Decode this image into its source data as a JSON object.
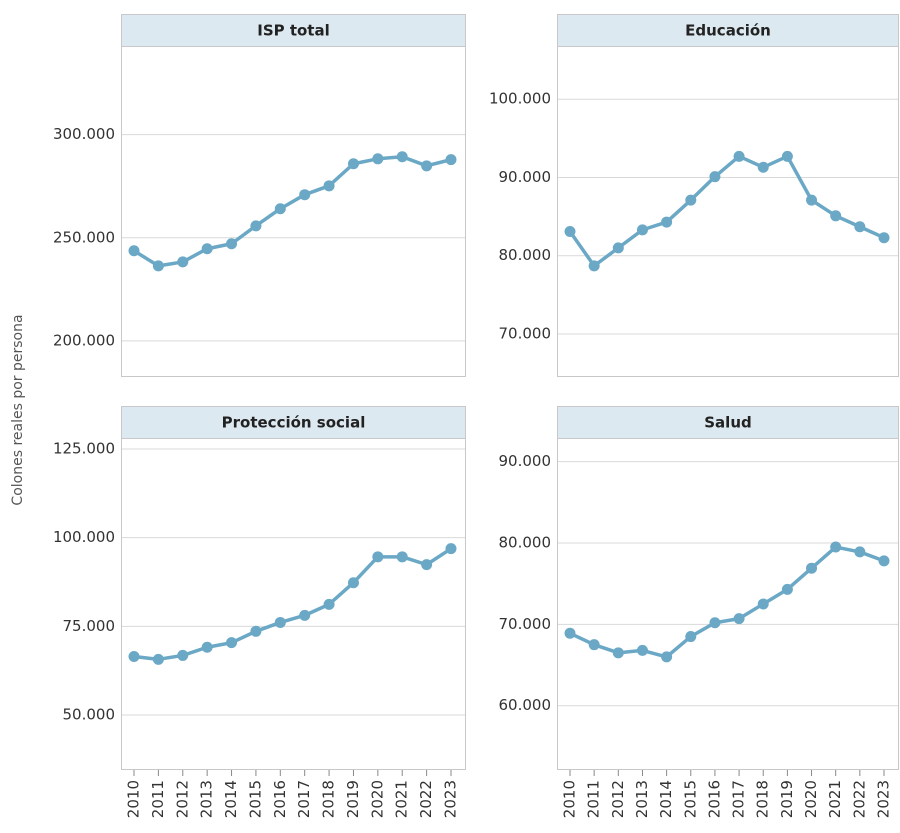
{
  "ylabel": "Colones reales por persona",
  "chart_data": [
    {
      "type": "line",
      "title": "ISP total",
      "color": "#6aa8c6",
      "grid": true,
      "categories": [
        "2010",
        "2011",
        "2012",
        "2013",
        "2014",
        "2015",
        "2016",
        "2017",
        "2018",
        "2019",
        "2020",
        "2021",
        "2022",
        "2023"
      ],
      "values": [
        243700,
        236400,
        238300,
        244700,
        247100,
        255800,
        264100,
        270900,
        275200,
        285900,
        288300,
        289300,
        284900,
        287900
      ],
      "ylim": [
        182500,
        343000
      ],
      "yticks": [
        {
          "value": 200000,
          "label": "200.000"
        },
        {
          "value": 250000,
          "label": "250.000"
        },
        {
          "value": 300000,
          "label": "300.000"
        }
      ]
    },
    {
      "type": "line",
      "title": "Educación",
      "color": "#6aa8c6",
      "grid": true,
      "categories": [
        "2010",
        "2011",
        "2012",
        "2013",
        "2014",
        "2015",
        "2016",
        "2017",
        "2018",
        "2019",
        "2020",
        "2021",
        "2022",
        "2023"
      ],
      "values": [
        83100,
        78700,
        81000,
        83300,
        84300,
        87100,
        90100,
        92700,
        91300,
        92700,
        87100,
        85100,
        83700,
        82300
      ],
      "ylim": [
        64500,
        106800
      ],
      "yticks": [
        {
          "value": 70000,
          "label": "70.000"
        },
        {
          "value": 80000,
          "label": "80.000"
        },
        {
          "value": 90000,
          "label": "90.000"
        },
        {
          "value": 100000,
          "label": "100.000"
        }
      ]
    },
    {
      "type": "line",
      "title": "Protección social",
      "color": "#6aa8c6",
      "grid": true,
      "categories": [
        "2010",
        "2011",
        "2012",
        "2013",
        "2014",
        "2015",
        "2016",
        "2017",
        "2018",
        "2019",
        "2020",
        "2021",
        "2022",
        "2023"
      ],
      "values": [
        66500,
        65700,
        66800,
        69100,
        70400,
        73600,
        76100,
        78100,
        81200,
        87300,
        94600,
        94600,
        92400,
        96900
      ],
      "ylim": [
        34500,
        128100
      ],
      "yticks": [
        {
          "value": 50000,
          "label": "50.000"
        },
        {
          "value": 75000,
          "label": "75.000"
        },
        {
          "value": 100000,
          "label": "100.000"
        },
        {
          "value": 125000,
          "label": "125.000"
        }
      ]
    },
    {
      "type": "line",
      "title": "Salud",
      "color": "#6aa8c6",
      "grid": true,
      "categories": [
        "2010",
        "2011",
        "2012",
        "2013",
        "2014",
        "2015",
        "2016",
        "2017",
        "2018",
        "2019",
        "2020",
        "2021",
        "2022",
        "2023"
      ],
      "values": [
        68900,
        67500,
        66500,
        66800,
        66000,
        68500,
        70200,
        70700,
        72500,
        74300,
        76900,
        79500,
        78900,
        77800
      ],
      "ylim": [
        52100,
        92900
      ],
      "yticks": [
        {
          "value": 60000,
          "label": "60.000"
        },
        {
          "value": 70000,
          "label": "70.000"
        },
        {
          "value": 80000,
          "label": "80.000"
        },
        {
          "value": 90000,
          "label": "90.000"
        }
      ]
    }
  ]
}
